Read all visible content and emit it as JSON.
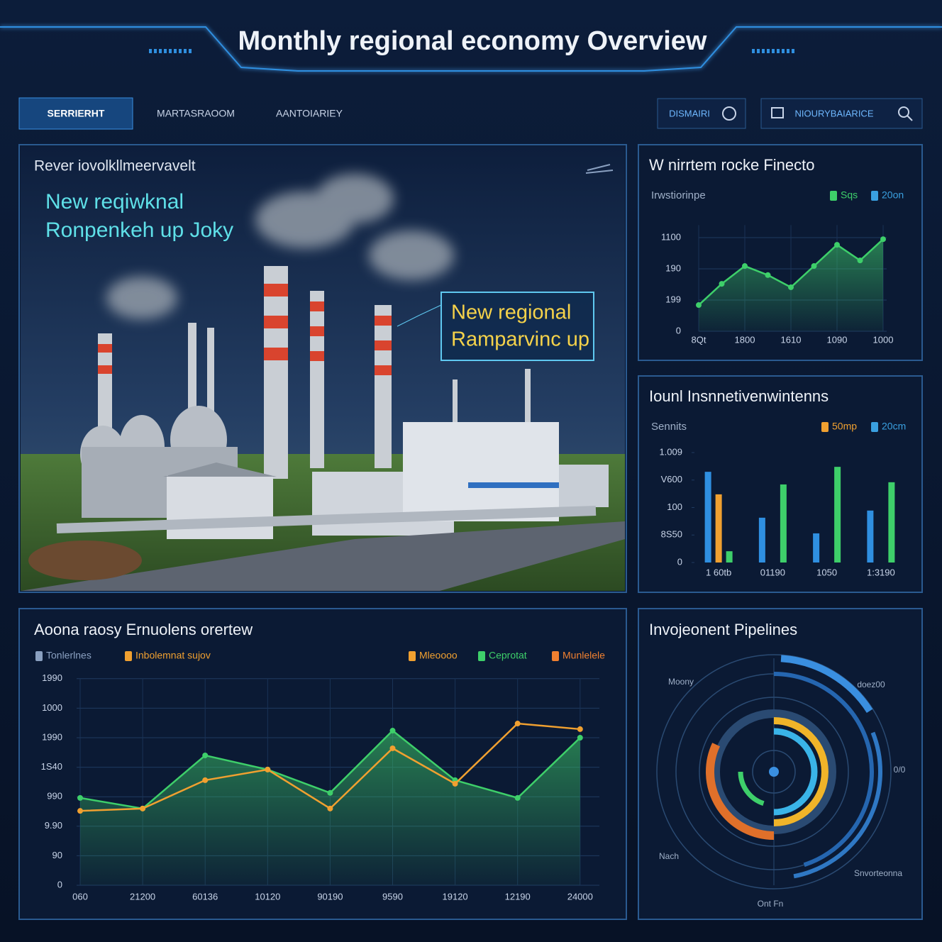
{
  "header": {
    "title": "Monthly regional economy Overview"
  },
  "nav": {
    "tabs": [
      "SERRIERHT",
      "MARTASRAOOM",
      "AANTOIARIEY"
    ],
    "buttons": [
      "DISMAIRI",
      "NIOURYBAIARICE"
    ]
  },
  "hero": {
    "title": "Rever iovolkllmeervavelt",
    "headline": [
      "New reqiwknal",
      "Ronpenkeh up Joky"
    ],
    "callout": [
      "New regional",
      "Ramparvinc up"
    ]
  },
  "chart_data": [
    {
      "type": "area",
      "title": "W nirrtem rocke Finecto",
      "subtitle": "Irwstiorinpe",
      "legend": [
        {
          "name": "Sqs",
          "color": "#3ecf6a"
        },
        {
          "name": "20on",
          "color": "#3aa0e0"
        }
      ],
      "categories": [
        "8Qt",
        null,
        "1800",
        null,
        "1610",
        null,
        "1090",
        null,
        "1000"
      ],
      "series": [
        {
          "color": "#3ecf6a",
          "values": [
            84,
            152,
            209,
            180,
            141,
            209,
            277,
            227,
            295
          ]
        }
      ],
      "ylim": [
        0,
        340
      ],
      "yticks": [
        0,
        {
          "value": 100,
          "label": "199"
        },
        {
          "value": 200,
          "label": "190"
        },
        {
          "value": 300,
          "label": "1100"
        }
      ],
      "grid": true
    },
    {
      "type": "bar",
      "title": "Iounl Insnnetivenwintenns",
      "subtitle": "Sennits",
      "legend": [
        {
          "name": "50mp",
          "color": "#f0a030"
        },
        {
          "name": "20cm",
          "color": "#3aa0e0"
        }
      ],
      "categories": [
        "1 60tb",
        "01190",
        "1050",
        "1:3190"
      ],
      "series": [
        {
          "color": "#2f8fe0",
          "values": [
            330,
            163,
            106,
            189
          ]
        },
        {
          "color": "#f0a030",
          "values": [
            248,
            null,
            null,
            null
          ]
        },
        {
          "color": "#3ecf6a",
          "values": [
            41,
            284,
            348,
            292
          ]
        }
      ],
      "ylim": [
        0,
        400
      ],
      "yticks": [
        0,
        {
          "value": 100,
          "label": "8S50"
        },
        {
          "value": 200,
          "label": "100"
        },
        {
          "value": 300,
          "label": "V600"
        },
        {
          "value": 400,
          "label": "1.009"
        }
      ],
      "grid": false
    },
    {
      "type": "line",
      "title": "Aoona raosy Ernuolens orertew",
      "legend": [
        {
          "name": "Tonlerlnes",
          "color": "#8aa0c0"
        },
        {
          "name": "Inbolemnat sujov",
          "color": "#f0a030"
        },
        {
          "name": "Mleoooo",
          "color": "#f0a030"
        },
        {
          "name": "Ceprotat",
          "color": "#3ecf6a"
        },
        {
          "name": "Munlelele",
          "color": "#f08030"
        }
      ],
      "categories": [
        "060",
        "21200",
        "60136",
        "10120",
        "90190",
        "9590",
        "19120",
        "12190",
        "24000"
      ],
      "series": [
        {
          "color": "#3ecf6a",
          "area": true,
          "values": [
            296,
            260,
            440,
            392,
            313,
            524,
            356,
            296,
            500
          ]
        },
        {
          "color": "#f0a030",
          "area": false,
          "values": [
            252,
            260,
            356,
            392,
            260,
            464,
            344,
            548,
            529
          ]
        }
      ],
      "ylim": [
        0,
        700
      ],
      "yticks": [
        0,
        {
          "value": 100,
          "label": "90"
        },
        {
          "value": 200,
          "label": "9.90"
        },
        {
          "value": 300,
          "label": "990"
        },
        {
          "value": 400,
          "label": "1S40"
        },
        {
          "value": 500,
          "label": "1990"
        },
        {
          "value": 600,
          "label": "1000"
        },
        {
          "value": 700,
          "label": "1990"
        }
      ],
      "grid": true
    },
    {
      "type": "radial",
      "title": "Invojeonent Pipelines",
      "labels": [
        "Moony",
        "doez00",
        "0/0",
        "Nach",
        "Snvorteonna",
        "Ont Fn"
      ],
      "series": [
        {
          "color": "#3a8fe0",
          "start": 1,
          "value": 15
        },
        {
          "color": "#2f78c4",
          "start": 19,
          "value": 28
        },
        {
          "color": "#2566b0",
          "start": 0,
          "value": 45
        },
        {
          "color": "#e0702a",
          "start": 50,
          "value": 32
        },
        {
          "color": "#f0b429",
          "start": 0,
          "value": 50
        },
        {
          "color": "#3ab4e8",
          "start": 0,
          "value": 50
        },
        {
          "color": "#3ecf6a",
          "start": 55,
          "value": 20
        }
      ]
    }
  ]
}
